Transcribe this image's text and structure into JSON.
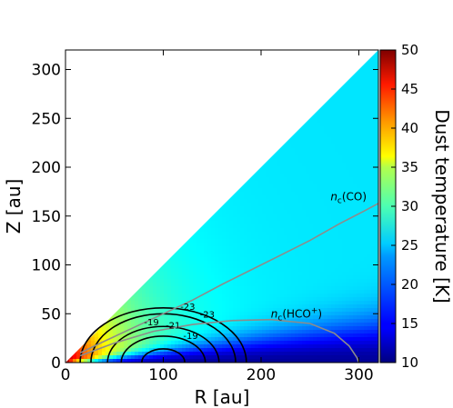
{
  "chart_data": {
    "type": "heatmap",
    "xlabel": "R [au]",
    "ylabel": "Z [au]",
    "xlim": [
      0,
      320
    ],
    "ylim": [
      0,
      320
    ],
    "x_ticks": [
      0,
      100,
      200,
      300
    ],
    "y_ticks": [
      0,
      50,
      100,
      150,
      200,
      250,
      300
    ],
    "colorbar": {
      "label": "Dust temperature [K]",
      "range": [
        10,
        50
      ],
      "ticks": [
        10,
        15,
        20,
        25,
        30,
        35,
        40,
        45,
        50
      ],
      "colormap": "jet"
    },
    "wedge_boundary_z_over_r": 1.0,
    "lines": [
      {
        "label": "n_c(CO)",
        "label_main": "n",
        "label_sub": "c",
        "label_rest": "(CO)",
        "color": "#8c8c8c",
        "label_at": [
          271,
          166
        ],
        "points": [
          [
            15,
            10
          ],
          [
            40,
            22
          ],
          [
            70,
            36
          ],
          [
            100,
            50
          ],
          [
            130,
            64
          ],
          [
            160,
            80
          ],
          [
            190,
            95
          ],
          [
            220,
            110
          ],
          [
            250,
            125
          ],
          [
            280,
            142
          ],
          [
            305,
            155
          ],
          [
            320,
            163
          ]
        ]
      },
      {
        "label": "n_c(HCO+)",
        "label_main": "n",
        "label_sub": "c",
        "label_rest": "(HCO",
        "label_sup": "+",
        "label_close": ")",
        "color": "#8c8c8c",
        "label_at": [
          210,
          46
        ],
        "points": [
          [
            15,
            7
          ],
          [
            50,
            20
          ],
          [
            90,
            32
          ],
          [
            130,
            39
          ],
          [
            170,
            43
          ],
          [
            210,
            44
          ],
          [
            250,
            40
          ],
          [
            275,
            30
          ],
          [
            290,
            17
          ],
          [
            298,
            5
          ],
          [
            300,
            0
          ]
        ]
      }
    ],
    "contours": [
      {
        "level": "-19",
        "label": "-19",
        "center": [
          100,
          0
        ],
        "rx": 22,
        "ry": 14,
        "label_at": [
          88,
          38
        ]
      },
      {
        "level": "-19",
        "label": "-19",
        "center": [
          100,
          0
        ],
        "rx": 43,
        "ry": 27,
        "label_at": [
          128,
          24
        ]
      },
      {
        "level": "-21",
        "label": "-21",
        "center": [
          100,
          0
        ],
        "rx": 57,
        "ry": 37,
        "label_at": [
          110,
          35
        ]
      },
      {
        "level": "-23",
        "label": "-23",
        "center": [
          100,
          0
        ],
        "rx": 74,
        "ry": 50,
        "label_at": [
          125,
          54
        ]
      },
      {
        "level": "-23",
        "label": "-23",
        "center": [
          100,
          0
        ],
        "rx": 85,
        "ry": 56,
        "label_at": [
          145,
          46
        ]
      }
    ],
    "temperature_model": {
      "disk_cold_value": 11,
      "note_colors": "warm near origin and at large Z/R, cold in midplane"
    }
  }
}
